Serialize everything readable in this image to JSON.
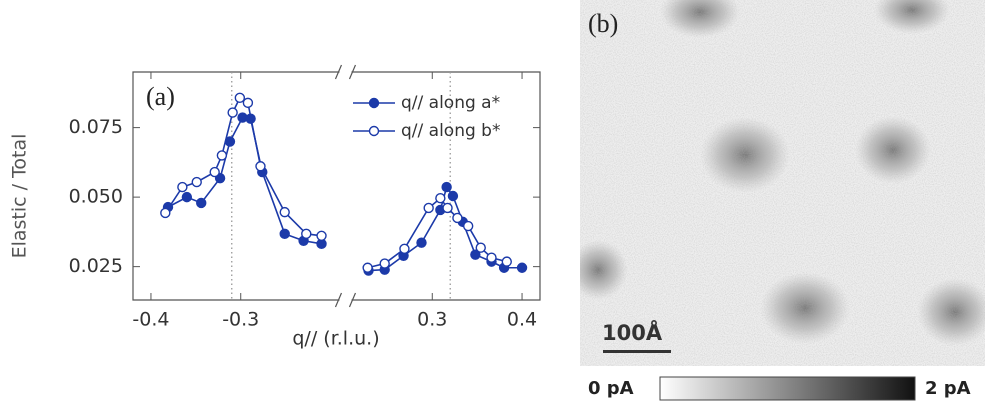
{
  "chart_data": [
    {
      "type": "line",
      "panel_label": "(a)",
      "ylabel": "Elastic / Total",
      "xlabel": "q// (r.l.u.)",
      "xlim": [
        -0.42,
        0.42
      ],
      "xbreak": [
        -0.19,
        0.21
      ],
      "xticks": [
        -0.4,
        -0.3,
        0.3,
        0.4
      ],
      "ylim": [
        0.013,
        0.095
      ],
      "yticks": [
        0.025,
        {
          "value": 0.05,
          "label": "0.050"
        },
        0.075
      ],
      "reference_lines": [
        -0.31,
        0.32
      ],
      "legend": "upper right",
      "series": [
        {
          "name": "q// along a*",
          "color": "#1c3aa9",
          "marker": "filled",
          "x": [
            -0.381,
            -0.36,
            -0.344,
            -0.323,
            -0.312,
            -0.298,
            -0.289,
            -0.276,
            -0.251,
            -0.23,
            -0.21,
            0.229,
            0.247,
            0.268,
            0.288,
            0.309,
            0.316,
            0.323,
            0.334,
            0.348,
            0.366,
            0.38,
            0.4
          ],
          "values": [
            0.0464,
            0.05,
            0.0479,
            0.0568,
            0.07,
            0.0786,
            0.0782,
            0.059,
            0.0368,
            0.0343,
            0.0332,
            0.0236,
            0.0239,
            0.0289,
            0.0336,
            0.0454,
            0.0536,
            0.0504,
            0.0411,
            0.0293,
            0.0268,
            0.0246,
            0.0246
          ]
        },
        {
          "name": "q// along b*",
          "color": "#1c3aa9",
          "marker": "open",
          "x": [
            -0.384,
            -0.365,
            -0.349,
            -0.329,
            -0.321,
            -0.309,
            -0.301,
            -0.292,
            -0.278,
            -0.251,
            -0.227,
            -0.21,
            0.228,
            0.247,
            0.269,
            0.296,
            0.309,
            0.317,
            0.328,
            0.34,
            0.354,
            0.366,
            0.383
          ],
          "values": [
            0.0443,
            0.0536,
            0.0554,
            0.059,
            0.065,
            0.0804,
            0.0857,
            0.0839,
            0.0611,
            0.0446,
            0.0368,
            0.0361,
            0.0246,
            0.0261,
            0.0314,
            0.0461,
            0.0496,
            0.0461,
            0.0425,
            0.0396,
            0.0318,
            0.0282,
            0.0268
          ]
        }
      ]
    },
    {
      "type": "image",
      "panel_label": "(b)",
      "scale_bar": "100Å",
      "colorbar_labels": [
        "0 pA",
        "2 pA"
      ]
    }
  ]
}
